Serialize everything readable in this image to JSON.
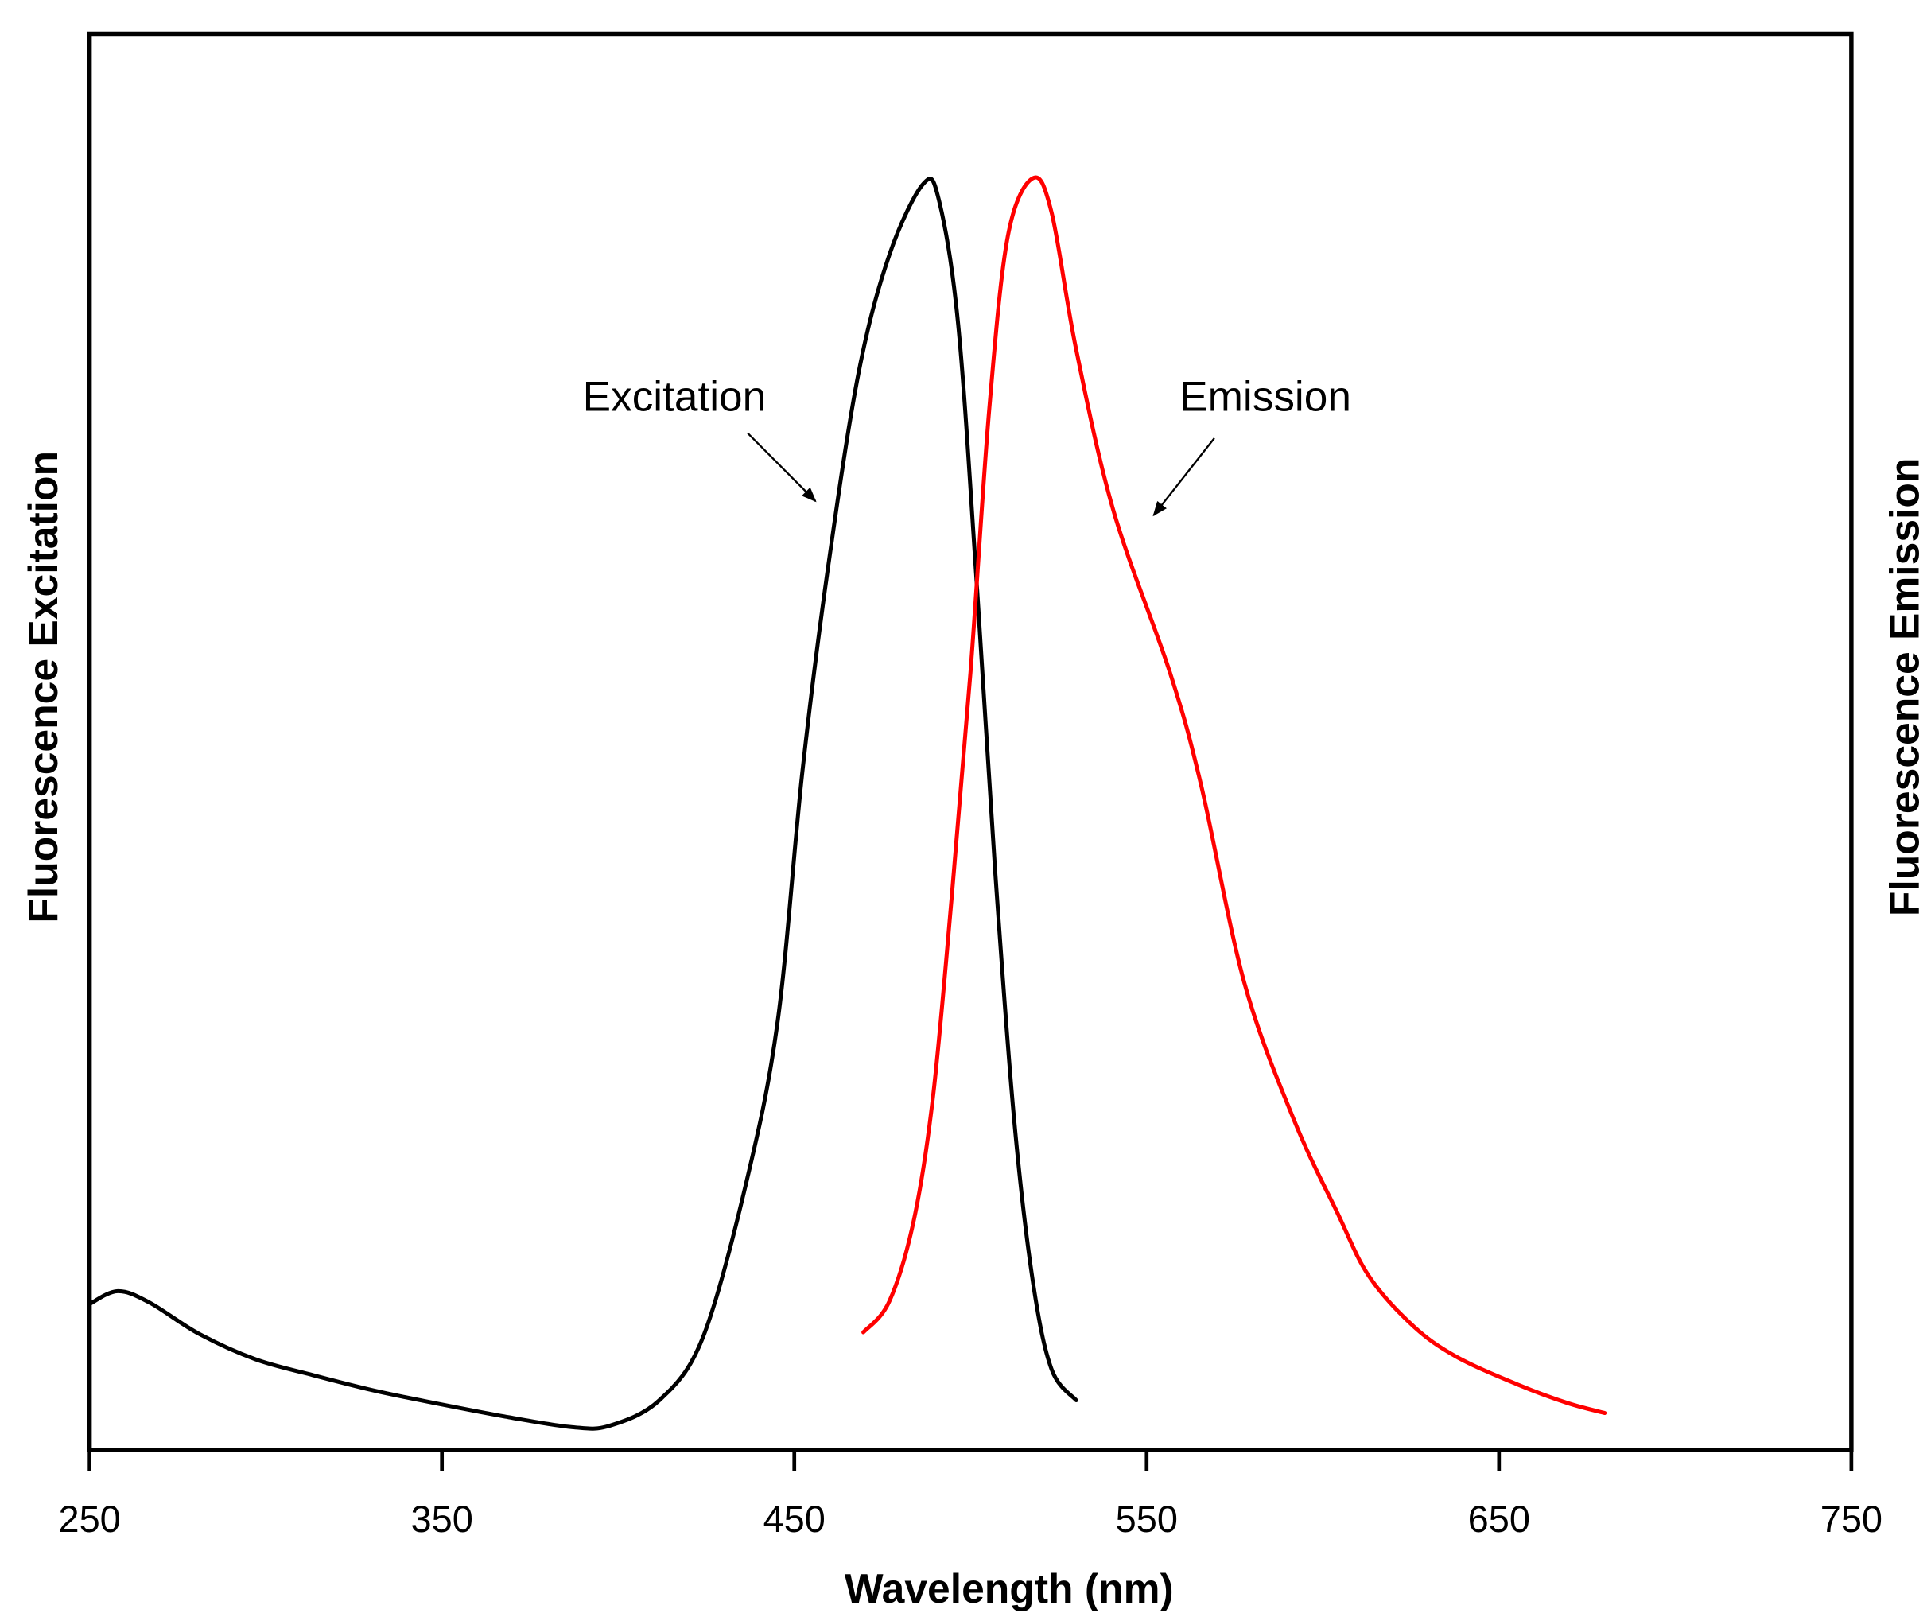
{
  "chart_data": {
    "type": "line",
    "title": "",
    "xlabel": "Wavelength (nm)",
    "ylabel_left": "Fluorescence Excitation",
    "ylabel_right": "Fluorescence Emission",
    "xlim": [
      250,
      750
    ],
    "ylim": [
      0,
      1
    ],
    "xticks": [
      250,
      350,
      450,
      550,
      650,
      750
    ],
    "yticks_shown": false,
    "grid": false,
    "series": [
      {
        "name": "Excitation",
        "color": "#000000",
        "points": [
          [
            250,
            0.103
          ],
          [
            258,
            0.112
          ],
          [
            267,
            0.104
          ],
          [
            281,
            0.082
          ],
          [
            297,
            0.064
          ],
          [
            313,
            0.053
          ],
          [
            330.5,
            0.042
          ],
          [
            348,
            0.033
          ],
          [
            369,
            0.023
          ],
          [
            387,
            0.016
          ],
          [
            397.6,
            0.017
          ],
          [
            411.7,
            0.035
          ],
          [
            424,
            0.079
          ],
          [
            436.4,
            0.189
          ],
          [
            445.3,
            0.303
          ],
          [
            452.3,
            0.479
          ],
          [
            459.4,
            0.62
          ],
          [
            468.2,
            0.76
          ],
          [
            477,
            0.844
          ],
          [
            486.6,
            0.894
          ],
          [
            491,
            0.883
          ],
          [
            496.5,
            0.795
          ],
          [
            501.8,
            0.611
          ],
          [
            507,
            0.409
          ],
          [
            512.4,
            0.233
          ],
          [
            517.7,
            0.119
          ],
          [
            523,
            0.057
          ],
          [
            530,
            0.035
          ]
        ]
      },
      {
        "name": "Emission",
        "color": "#ff0000",
        "points": [
          [
            469.6,
            0.083
          ],
          [
            477,
            0.105
          ],
          [
            484,
            0.163
          ],
          [
            489.4,
            0.25
          ],
          [
            494.7,
            0.391
          ],
          [
            500,
            0.549
          ],
          [
            505.3,
            0.734
          ],
          [
            510.6,
            0.857
          ],
          [
            517.7,
            0.898
          ],
          [
            523,
            0.874
          ],
          [
            530,
            0.777
          ],
          [
            540.6,
            0.663
          ],
          [
            556.6,
            0.549
          ],
          [
            565.4,
            0.47
          ],
          [
            577.7,
            0.33
          ],
          [
            591.8,
            0.233
          ],
          [
            604.2,
            0.167
          ],
          [
            613,
            0.123
          ],
          [
            625.4,
            0.088
          ],
          [
            637.7,
            0.066
          ],
          [
            655.4,
            0.046
          ],
          [
            669.5,
            0.033
          ],
          [
            680,
            0.026
          ]
        ]
      }
    ],
    "annotations": [
      {
        "text": "Excitation",
        "arrow_to": [
          456,
          0.67
        ]
      },
      {
        "text": "Emission",
        "arrow_to": [
          552,
          0.66
        ]
      }
    ]
  }
}
